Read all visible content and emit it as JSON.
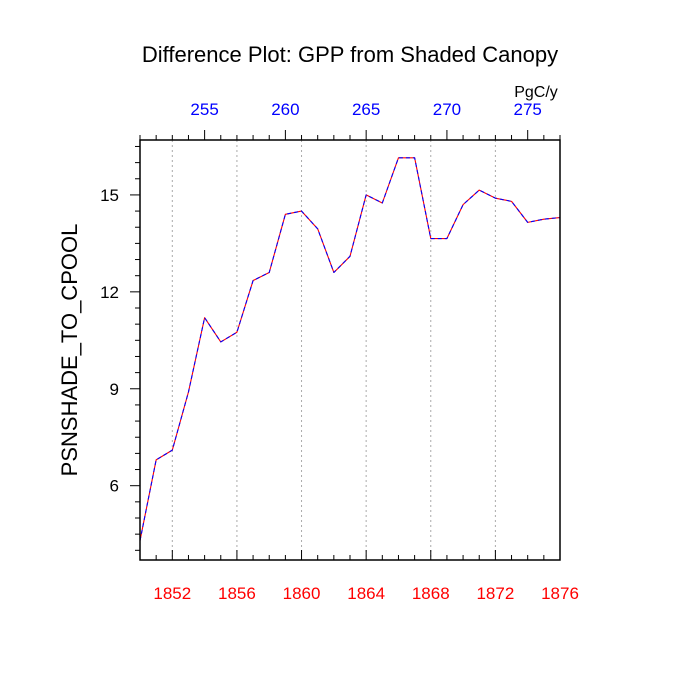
{
  "chart_data": {
    "type": "line",
    "title": "Difference Plot: GPP from Shaded Canopy",
    "ylabel": "PSNSHADE_TO_CPOOL",
    "top_axis_units": "PgC/y",
    "xlim": [
      1850,
      1876
    ],
    "ylim": [
      3.7,
      16.7
    ],
    "x_ticks": [
      1852,
      1856,
      1860,
      1864,
      1868,
      1872,
      1876
    ],
    "x_tick_labels": [
      "1852",
      "1856",
      "1860",
      "1864",
      "1868",
      "1872",
      "1876"
    ],
    "y_ticks": [
      6,
      9,
      12,
      15
    ],
    "y_tick_labels": [
      "6",
      "9",
      "12",
      "15"
    ],
    "top_ticks": [
      255,
      260,
      265,
      270,
      275
    ],
    "top_tick_labels": [
      "255",
      "260",
      "265",
      "270",
      "275"
    ],
    "top_axis_range": [
      251,
      277
    ],
    "grid": "vertical-dotted",
    "colors": {
      "bottom_ticks": "#ff0000",
      "top_ticks": "#0000ff",
      "line_primary": "#0000ff",
      "line_secondary": "#ff0000",
      "grid": "#aaaaaa",
      "text": "#000000"
    },
    "series": [
      {
        "name": "PSNSHADE_TO_CPOOL",
        "x": [
          1850,
          1851,
          1852,
          1853,
          1854,
          1855,
          1856,
          1857,
          1858,
          1859,
          1860,
          1861,
          1862,
          1863,
          1864,
          1865,
          1866,
          1867,
          1868,
          1869,
          1870,
          1871,
          1872,
          1873,
          1874,
          1875,
          1876
        ],
        "values": [
          4.3,
          6.8,
          7.1,
          8.9,
          11.2,
          10.45,
          10.75,
          12.35,
          12.6,
          14.4,
          14.5,
          13.95,
          12.6,
          13.1,
          15.0,
          14.75,
          16.15,
          16.15,
          13.65,
          13.65,
          14.7,
          15.15,
          14.9,
          14.8,
          14.15,
          14.25,
          14.3
        ]
      }
    ]
  }
}
